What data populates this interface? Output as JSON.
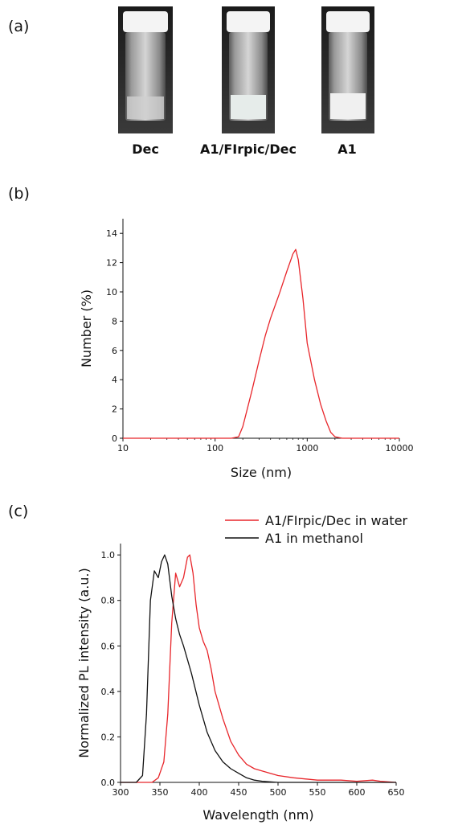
{
  "panels": {
    "a": {
      "label": "(a)"
    },
    "b": {
      "label": "(b)"
    },
    "c": {
      "label": "(c)"
    }
  },
  "vials": [
    {
      "label": "Dec",
      "content": "clear"
    },
    {
      "label": "A1/FIrpic/Dec",
      "content": "light-milky"
    },
    {
      "label": "A1",
      "content": "milky"
    }
  ],
  "colors": {
    "red": "#e8262b",
    "black": "#111111"
  },
  "chart_data": [
    {
      "type": "line",
      "xlabel": "Size (nm)",
      "ylabel": "Number (%)",
      "xscale": "log",
      "xlim": [
        10,
        10000
      ],
      "ylim": [
        0,
        15
      ],
      "xticks": [
        10,
        100,
        1000,
        10000
      ],
      "xtick_labels": [
        "10",
        "100",
        "1000",
        "10000"
      ],
      "yticks": [
        0,
        2,
        4,
        6,
        8,
        10,
        12,
        14
      ],
      "ytick_labels": [
        "0",
        "2",
        "4",
        "6",
        "8",
        "10",
        "12",
        "14"
      ],
      "grid": false,
      "series": [
        {
          "color": "#e8262b",
          "x": [
            10,
            150,
            180,
            200,
            250,
            300,
            350,
            400,
            500,
            600,
            700,
            750,
            800,
            900,
            1000,
            1200,
            1400,
            1600,
            1800,
            2000,
            2400,
            3000,
            10000
          ],
          "y": [
            0,
            0,
            0.1,
            0.8,
            3.2,
            5.3,
            7.0,
            8.2,
            9.9,
            11.4,
            12.6,
            12.9,
            12.2,
            9.5,
            6.5,
            4.0,
            2.3,
            1.2,
            0.4,
            0.1,
            0,
            0,
            0
          ]
        }
      ]
    },
    {
      "type": "line",
      "xlabel": "Wavelength (nm)",
      "ylabel": "Normalized PL intensity (a.u.)",
      "xlim": [
        300,
        650
      ],
      "ylim": [
        0,
        1.05
      ],
      "xticks": [
        300,
        350,
        400,
        450,
        500,
        550,
        600,
        650
      ],
      "xtick_labels": [
        "300",
        "350",
        "400",
        "450",
        "500",
        "550",
        "600",
        "650"
      ],
      "yticks": [
        0,
        0.2,
        0.4,
        0.6,
        0.8,
        1.0
      ],
      "ytick_labels": [
        "0.0",
        "0.2",
        "0.4",
        "0.6",
        "0.8",
        "1.0"
      ],
      "grid": false,
      "legend": "top-right",
      "series": [
        {
          "name": "A1/FIrpic/Dec in water",
          "color": "#e8262b",
          "x": [
            300,
            340,
            348,
            355,
            360,
            365,
            370,
            375,
            380,
            385,
            388,
            392,
            396,
            400,
            405,
            410,
            415,
            420,
            430,
            440,
            450,
            460,
            470,
            480,
            500,
            520,
            550,
            580,
            600,
            620,
            630,
            650
          ],
          "y": [
            0,
            0,
            0.02,
            0.09,
            0.3,
            0.7,
            0.92,
            0.86,
            0.9,
            0.99,
            1.0,
            0.92,
            0.78,
            0.68,
            0.62,
            0.58,
            0.5,
            0.4,
            0.28,
            0.18,
            0.12,
            0.08,
            0.06,
            0.05,
            0.03,
            0.02,
            0.01,
            0.01,
            0.005,
            0.01,
            0.005,
            0
          ]
        },
        {
          "name": "A1 in methanol",
          "color": "#111111",
          "x": [
            300,
            320,
            328,
            333,
            338,
            343,
            348,
            352,
            356,
            360,
            365,
            370,
            375,
            380,
            390,
            400,
            410,
            420,
            430,
            440,
            450,
            460,
            470,
            480,
            500,
            550,
            650
          ],
          "y": [
            0,
            0,
            0.03,
            0.3,
            0.8,
            0.93,
            0.9,
            0.97,
            1.0,
            0.96,
            0.82,
            0.72,
            0.65,
            0.6,
            0.48,
            0.34,
            0.22,
            0.14,
            0.09,
            0.06,
            0.04,
            0.02,
            0.01,
            0.005,
            0,
            0,
            0
          ]
        }
      ]
    }
  ]
}
